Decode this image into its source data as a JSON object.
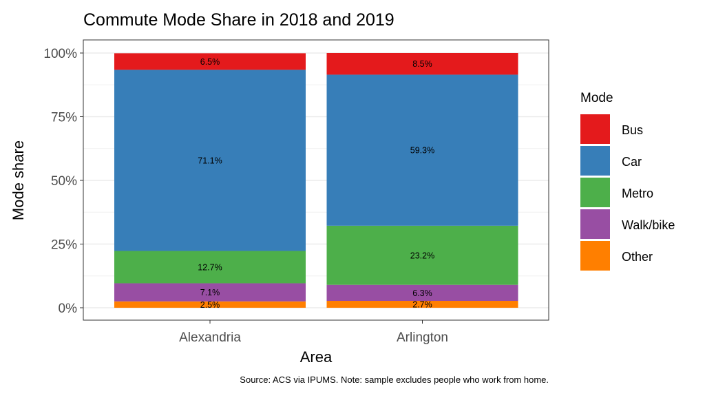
{
  "chart_data": {
    "type": "bar",
    "stacked": true,
    "title": "Commute Mode Share in 2018 and 2019",
    "xlabel": "Area",
    "ylabel": "Mode share",
    "caption": "Source: ACS via IPUMS. Note: sample excludes people who work from home.",
    "categories": [
      "Alexandria",
      "Arlington"
    ],
    "ylim": [
      0,
      100
    ],
    "yticks": [
      0,
      25,
      50,
      75,
      100
    ],
    "ytick_labels": [
      "0%",
      "25%",
      "50%",
      "75%",
      "100%"
    ],
    "grid": true,
    "legend": {
      "title": "Mode",
      "position": "right"
    },
    "series": [
      {
        "name": "Bus",
        "color": "#E41A1C",
        "values": [
          6.5,
          8.5
        ],
        "labels": [
          "6.5%",
          "8.5%"
        ]
      },
      {
        "name": "Car",
        "color": "#377EB8",
        "values": [
          71.1,
          59.3
        ],
        "labels": [
          "71.1%",
          "59.3%"
        ]
      },
      {
        "name": "Metro",
        "color": "#4DAF4A",
        "values": [
          12.7,
          23.2
        ],
        "labels": [
          "12.7%",
          "23.2%"
        ]
      },
      {
        "name": "Walk/bike",
        "color": "#984EA3",
        "values": [
          7.1,
          6.3
        ],
        "labels": [
          "7.1%",
          "6.3%"
        ]
      },
      {
        "name": "Other",
        "color": "#FF7F00",
        "values": [
          2.5,
          2.7
        ],
        "labels": [
          "2.5%",
          "2.7%"
        ]
      }
    ]
  }
}
